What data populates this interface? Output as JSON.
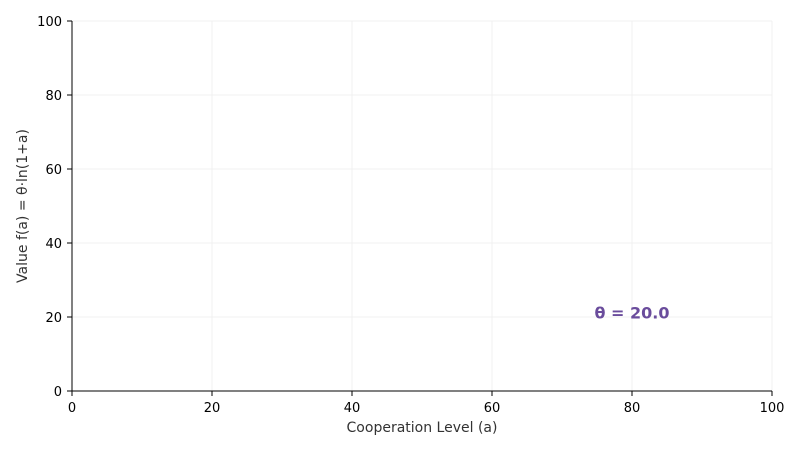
{
  "chart_data": {
    "type": "line",
    "xlabel": "Cooperation Level (a)",
    "ylabel": "Value f(a) = θ·ln(1+a)",
    "xlim": [
      0,
      100
    ],
    "ylim": [
      0,
      100
    ],
    "xticks": [
      0,
      20,
      40,
      60,
      80,
      100
    ],
    "yticks": [
      0,
      20,
      40,
      60,
      80,
      100
    ],
    "xtick_labels": [
      "0",
      "20",
      "40",
      "60",
      "80",
      "100"
    ],
    "ytick_labels": [
      "0",
      "20",
      "40",
      "60",
      "80",
      "100"
    ],
    "grid": true,
    "series": [],
    "annotations": [
      {
        "text": "θ = 20.0",
        "x": 80,
        "y": 21,
        "color": "#6a4c9c"
      }
    ],
    "colors": {
      "axis": "#000000",
      "grid": "#eeeeee",
      "annotation": "#6a4c9c"
    }
  }
}
